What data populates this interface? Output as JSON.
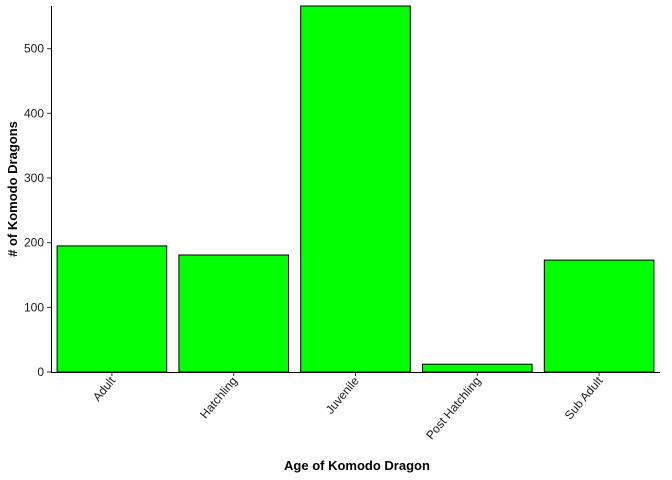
{
  "chart_data": {
    "type": "bar",
    "categories": [
      "Adult",
      "Hatchling",
      "Juvenile",
      "Post Hatchling",
      "Sub Adult"
    ],
    "values": [
      195,
      181,
      566,
      12,
      173
    ],
    "xlabel": "Age of Komodo Dragon",
    "ylabel": "# of Komodo Dragons",
    "ylim": [
      0,
      566
    ],
    "yticks": [
      0,
      100,
      200,
      300,
      400,
      500
    ],
    "grid": false,
    "bar_color": "#00FF00",
    "bar_outline": "#000000"
  }
}
